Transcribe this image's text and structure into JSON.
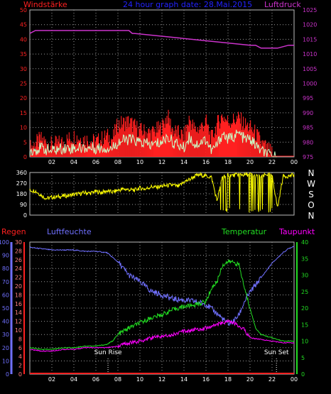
{
  "colors": {
    "background": "#000000",
    "grid": "#9a9a9a",
    "wind_gust": "#ff2020",
    "wind_avg": "#c8ffc8",
    "pressure": "#cc33cc",
    "direction": "#ffff00",
    "regen": "#ff2020",
    "luftfeuchte": "#7070ff",
    "temperatur": "#22dd22",
    "taupunkt": "#ff00ff",
    "title": "#2222ff",
    "left_axis_windstaerke": "#ff2020",
    "right_axis_luftdruck": "#cc33cc",
    "right_axis_temp": "#22dd22",
    "left_axis_regen": "#ff2020",
    "left_axis_luftfeuchte": "#7070ff",
    "sun_markers": "#ffffff"
  },
  "labels": {
    "windstaerke": "Windstärke",
    "title": "24 hour graph date: 28.Mai.2015",
    "luftdruck": "Luftdruck",
    "regen": "Regen",
    "luftfeuchte": "Luftfeuchte",
    "temperatur": "Temperatur",
    "taupunkt": "Taupunkt",
    "sun_rise": "Sun Rise",
    "sun_set": "Sun Set"
  },
  "chart_data": [
    {
      "type": "area",
      "x_unit": "hour",
      "x_range": [
        0,
        24
      ],
      "x_ticks": [
        "02",
        "04",
        "06",
        "08",
        "10",
        "12",
        "14",
        "16",
        "18",
        "20",
        "22",
        "00"
      ],
      "ylim_left": [
        0,
        50
      ],
      "yticks_left": [
        "0",
        "5",
        "10",
        "15",
        "20",
        "25",
        "30",
        "35",
        "40",
        "45",
        "50"
      ],
      "ylim_right": [
        975,
        1025
      ],
      "yticks_right": [
        "975",
        "980",
        "985",
        "990",
        "995",
        "1000",
        "1005",
        "1010",
        "1015",
        "1020",
        "1025"
      ],
      "series": [
        {
          "name": "Windstärke",
          "axis": "left",
          "style": "gust",
          "x": [
            0,
            1,
            2,
            3,
            4,
            5,
            6,
            7,
            7.5,
            8,
            9,
            10,
            11,
            12,
            12.5,
            13,
            14,
            14.5,
            15,
            15.5,
            16,
            16.5,
            17,
            17.5,
            18,
            19,
            19.5,
            20,
            20.5,
            21,
            21.5,
            22,
            23,
            24
          ],
          "y": [
            3,
            6,
            4,
            5,
            7,
            6,
            5,
            7,
            6,
            11,
            12,
            9,
            8,
            10,
            14,
            9,
            7,
            13,
            9,
            10,
            12,
            6,
            11,
            14,
            12,
            13,
            11,
            10,
            8,
            5,
            3,
            1,
            0,
            0
          ]
        },
        {
          "name": "",
          "axis": "left",
          "style": "avg",
          "x": [
            0,
            1,
            2,
            3,
            4,
            5,
            6,
            7,
            7.5,
            8,
            9,
            10,
            11,
            12,
            12.5,
            13,
            14,
            14.5,
            15,
            15.5,
            16,
            16.5,
            17,
            17.5,
            18,
            19,
            19.5,
            20,
            20.5,
            21,
            21.5,
            22,
            23,
            24
          ],
          "y": [
            2,
            3,
            2,
            3,
            3,
            3,
            3,
            3,
            3,
            5,
            6,
            5,
            4,
            5,
            7,
            5,
            3,
            7,
            4,
            5,
            6,
            2,
            4,
            8,
            6,
            8,
            6,
            6,
            4,
            2,
            1,
            0,
            0,
            0
          ]
        },
        {
          "name": "Luftdruck",
          "axis": "right",
          "style": "line",
          "x": [
            0,
            0.5,
            9,
            9.3,
            9.5,
            20,
            20.5,
            21,
            22,
            22.5,
            23.5,
            24
          ],
          "y": [
            1017,
            1018,
            1018,
            1017,
            1017,
            1013,
            1013,
            1012,
            1012,
            1012,
            1013,
            1013
          ]
        }
      ]
    },
    {
      "type": "scatter",
      "x_unit": "hour",
      "x_range": [
        0,
        24
      ],
      "ylim": [
        0,
        360
      ],
      "yticks": [
        "0",
        "90",
        "180",
        "270",
        "360"
      ],
      "right_labels": [
        "N",
        "W",
        "S",
        "O",
        "N"
      ],
      "series": [
        {
          "name": "",
          "axis": "left",
          "x": [
            0,
            0.5,
            1,
            1.5,
            2,
            2.5,
            3,
            3.5,
            4,
            4.5,
            5,
            5.5,
            6,
            6.5,
            7,
            7.5,
            8,
            8.5,
            9,
            9.5,
            10,
            10.5,
            11,
            11.5,
            12,
            12.5,
            13,
            13.5,
            14,
            14.5,
            15,
            15.5,
            16,
            16.5,
            17,
            17.5,
            18,
            18.5,
            19,
            19.5,
            20,
            20.5,
            21,
            21.5,
            22,
            22.5,
            23,
            23.5,
            24
          ],
          "y": [
            210,
            205,
            170,
            140,
            150,
            155,
            160,
            165,
            175,
            180,
            190,
            185,
            200,
            190,
            205,
            195,
            210,
            220,
            215,
            210,
            230,
            220,
            240,
            235,
            245,
            250,
            255,
            240,
            280,
            300,
            330,
            340,
            330,
            320,
            120,
            330,
            340,
            335,
            345,
            340,
            345,
            330,
            320,
            345,
            340,
            60,
            330,
            330,
            340
          ]
        }
      ]
    },
    {
      "type": "line",
      "x_unit": "hour",
      "x_range": [
        0,
        24
      ],
      "x_ticks": [
        "02",
        "04",
        "06",
        "08",
        "10",
        "12",
        "14",
        "16",
        "18",
        "20",
        "22",
        "00"
      ],
      "ylim_left_outer": [
        0,
        100
      ],
      "yticks_left_outer": [
        "0",
        "10",
        "20",
        "30",
        "40",
        "50",
        "60",
        "70",
        "80",
        "90",
        "100"
      ],
      "ylim_left_inner": [
        0,
        30
      ],
      "yticks_left_inner": [
        "0",
        "2",
        "4",
        "6",
        "8",
        "10",
        "12",
        "14",
        "16",
        "18",
        "20",
        "22",
        "24",
        "26",
        "28",
        "30"
      ],
      "ylim_right": [
        0,
        40
      ],
      "yticks_right": [
        "0",
        "5",
        "10",
        "15",
        "20",
        "25",
        "30",
        "35",
        "40"
      ],
      "annotations": [
        {
          "label": "Sun Rise",
          "x": 7.1
        },
        {
          "label": "Sun Set",
          "x": 22.4
        }
      ],
      "series": [
        {
          "name": "Regen",
          "axis": "left_outer",
          "x": [
            0,
            24
          ],
          "y": [
            0,
            0
          ]
        },
        {
          "name": "Luftfeuchte",
          "axis": "left_outer",
          "x": [
            0,
            1,
            2,
            3,
            4,
            5,
            6,
            7,
            8,
            9,
            10,
            11,
            12,
            13,
            14,
            15,
            16,
            17,
            17.5,
            18,
            18.5,
            19,
            19.5,
            20,
            21,
            22,
            22.5,
            23,
            23.5,
            24
          ],
          "y": [
            96,
            95,
            94,
            94,
            94,
            93,
            93,
            92,
            85,
            75,
            70,
            63,
            60,
            57,
            56,
            55,
            53,
            46,
            42,
            38,
            40,
            45,
            55,
            62,
            73,
            84,
            88,
            92,
            95,
            97
          ]
        },
        {
          "name": "Temperatur",
          "axis": "right",
          "x": [
            0,
            1,
            2,
            3,
            4,
            5,
            6,
            7,
            7.5,
            8,
            9,
            10,
            11,
            12,
            13,
            14,
            15,
            16,
            16.5,
            17,
            17.5,
            18,
            18.5,
            19,
            19.5,
            20,
            20.5,
            21,
            22,
            23,
            24
          ],
          "y": [
            8,
            7.5,
            7.5,
            8,
            8,
            8.5,
            8.5,
            9,
            10,
            12,
            14,
            15.5,
            17,
            18,
            19.5,
            20.5,
            21,
            22,
            26,
            28,
            33,
            34,
            34,
            33,
            26,
            20,
            14,
            12,
            11,
            10,
            10
          ]
        },
        {
          "name": "Taupunkt",
          "axis": "right",
          "x": [
            0,
            1,
            2,
            3,
            4,
            5,
            6,
            7,
            8,
            9,
            10,
            11,
            12,
            13,
            14,
            15,
            16,
            17,
            17.5,
            18,
            18.5,
            19,
            19.5,
            20,
            21,
            22,
            23,
            24
          ],
          "y": [
            7.5,
            7,
            7,
            7.5,
            7.5,
            8,
            8,
            8,
            8.5,
            9.5,
            10,
            11,
            11.5,
            12,
            13,
            13.5,
            14,
            15,
            15.5,
            16,
            15.5,
            14.5,
            13.5,
            11,
            10.5,
            10,
            9.5,
            9.5
          ]
        }
      ]
    }
  ]
}
